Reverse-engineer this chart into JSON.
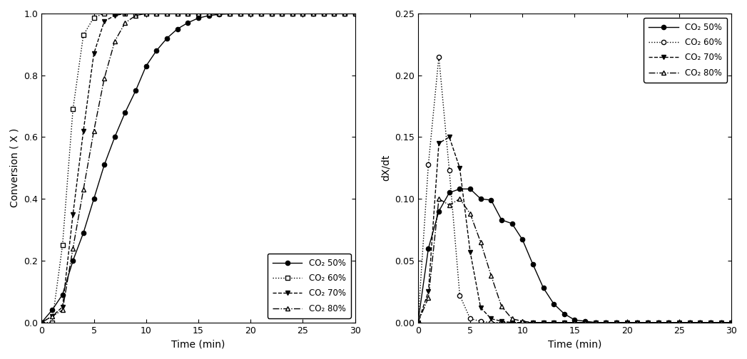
{
  "conv_50": {
    "x": [
      0,
      1,
      2,
      3,
      4,
      5,
      6,
      7,
      8,
      9,
      10,
      11,
      12,
      13,
      14,
      15,
      16,
      17,
      18,
      19,
      20,
      21,
      22,
      23,
      24,
      25,
      26,
      27,
      28,
      29,
      30
    ],
    "y": [
      0.0,
      0.04,
      0.09,
      0.2,
      0.29,
      0.4,
      0.51,
      0.6,
      0.68,
      0.75,
      0.83,
      0.88,
      0.92,
      0.95,
      0.97,
      0.985,
      0.993,
      0.997,
      0.999,
      1.0,
      1.0,
      1.0,
      1.0,
      1.0,
      1.0,
      1.0,
      1.0,
      1.0,
      1.0,
      1.0,
      1.0
    ]
  },
  "conv_60": {
    "x": [
      0,
      1,
      2,
      3,
      4,
      5,
      6,
      7,
      8,
      9,
      10,
      11,
      12,
      13,
      14,
      15,
      16,
      17,
      18,
      19,
      20,
      21,
      22,
      23,
      24,
      25,
      26,
      27,
      28,
      29,
      30
    ],
    "y": [
      0.0,
      0.0,
      0.25,
      0.69,
      0.93,
      0.987,
      1.0,
      1.0,
      1.0,
      1.0,
      1.0,
      1.0,
      1.0,
      1.0,
      1.0,
      1.0,
      1.0,
      1.0,
      1.0,
      1.0,
      1.0,
      1.0,
      1.0,
      1.0,
      1.0,
      1.0,
      1.0,
      1.0,
      1.0,
      1.0,
      1.0
    ]
  },
  "conv_70": {
    "x": [
      0,
      1,
      2,
      3,
      4,
      5,
      6,
      7,
      8,
      9,
      10,
      11,
      12,
      13,
      14,
      15,
      16,
      17,
      18,
      19,
      20,
      21,
      22,
      23,
      24,
      25,
      26,
      27,
      28,
      29,
      30
    ],
    "y": [
      0.0,
      0.02,
      0.05,
      0.35,
      0.62,
      0.87,
      0.975,
      0.993,
      1.0,
      1.0,
      1.0,
      1.0,
      1.0,
      1.0,
      1.0,
      1.0,
      1.0,
      1.0,
      1.0,
      1.0,
      1.0,
      1.0,
      1.0,
      1.0,
      1.0,
      1.0,
      1.0,
      1.0,
      1.0,
      1.0,
      1.0
    ]
  },
  "conv_80": {
    "x": [
      0,
      1,
      2,
      3,
      4,
      5,
      6,
      7,
      8,
      9,
      10,
      11,
      12,
      13,
      14,
      15,
      16,
      17,
      18,
      19,
      20,
      21,
      22,
      23,
      24,
      25,
      26,
      27,
      28,
      29,
      30
    ],
    "y": [
      0.0,
      0.02,
      0.04,
      0.24,
      0.43,
      0.62,
      0.79,
      0.91,
      0.97,
      0.993,
      1.0,
      1.0,
      1.0,
      1.0,
      1.0,
      1.0,
      1.0,
      1.0,
      1.0,
      1.0,
      1.0,
      1.0,
      1.0,
      1.0,
      1.0,
      1.0,
      1.0,
      1.0,
      1.0,
      1.0,
      1.0
    ]
  },
  "rate_50": {
    "x": [
      0,
      1,
      2,
      3,
      4,
      5,
      6,
      7,
      8,
      9,
      10,
      11,
      12,
      13,
      14,
      15,
      16,
      17,
      18,
      19,
      20,
      21,
      22,
      23,
      24,
      25,
      26,
      27,
      28,
      29,
      30
    ],
    "y": [
      0.0,
      0.06,
      0.09,
      0.105,
      0.108,
      0.108,
      0.1,
      0.099,
      0.083,
      0.08,
      0.067,
      0.047,
      0.028,
      0.015,
      0.007,
      0.002,
      0.001,
      0.0,
      0.0,
      0.0,
      0.0,
      0.0,
      0.0,
      0.0,
      0.0,
      0.0,
      0.0,
      0.0,
      0.0,
      0.0,
      0.0
    ]
  },
  "rate_60": {
    "x": [
      0,
      1,
      2,
      3,
      4,
      5,
      6,
      7,
      8,
      9,
      10,
      11,
      12,
      13,
      14,
      15,
      16,
      17,
      18,
      19,
      20,
      21,
      22,
      23,
      24,
      25,
      26,
      27,
      28,
      29,
      30
    ],
    "y": [
      0.0,
      0.128,
      0.215,
      0.123,
      0.022,
      0.003,
      0.001,
      0.0,
      0.0,
      0.0,
      0.0,
      0.0,
      0.0,
      0.0,
      0.0,
      0.0,
      0.0,
      0.0,
      0.0,
      0.0,
      0.0,
      0.0,
      0.0,
      0.0,
      0.0,
      0.0,
      0.0,
      0.0,
      0.0,
      0.0,
      0.0
    ]
  },
  "rate_70": {
    "x": [
      0,
      1,
      2,
      3,
      4,
      5,
      6,
      7,
      8,
      9,
      10,
      11,
      12,
      13,
      14,
      15,
      16,
      17,
      18,
      19,
      20,
      21,
      22,
      23,
      24,
      25,
      26,
      27,
      28,
      29,
      30
    ],
    "y": [
      0.0,
      0.025,
      0.145,
      0.15,
      0.125,
      0.057,
      0.012,
      0.003,
      0.001,
      0.0,
      0.0,
      0.0,
      0.0,
      0.0,
      0.0,
      0.0,
      0.0,
      0.0,
      0.0,
      0.0,
      0.0,
      0.0,
      0.0,
      0.0,
      0.0,
      0.0,
      0.0,
      0.0,
      0.0,
      0.0,
      0.0
    ]
  },
  "rate_80": {
    "x": [
      0,
      1,
      2,
      3,
      4,
      5,
      6,
      7,
      8,
      9,
      10,
      11,
      12,
      13,
      14,
      15,
      16,
      17,
      18,
      19,
      20,
      21,
      22,
      23,
      24,
      25,
      26,
      27,
      28,
      29,
      30
    ],
    "y": [
      0.0,
      0.02,
      0.1,
      0.095,
      0.1,
      0.088,
      0.065,
      0.038,
      0.013,
      0.003,
      0.001,
      0.0,
      0.0,
      0.0,
      0.0,
      0.0,
      0.0,
      0.0,
      0.0,
      0.0,
      0.0,
      0.0,
      0.0,
      0.0,
      0.0,
      0.0,
      0.0,
      0.0,
      0.0,
      0.0,
      0.0
    ]
  },
  "legend_labels": [
    "CO₂ 50%",
    "CO₂ 60%",
    "CO₂ 70%",
    "CO₂ 80%"
  ],
  "xlabel": "Time (min)",
  "ylabel_left": "Conversion ( X )",
  "ylabel_right": "dX/dt",
  "xlim": [
    0,
    30
  ],
  "ylim_conv": [
    0.0,
    1.0
  ],
  "ylim_rate": [
    0.0,
    0.25
  ],
  "xticks": [
    0,
    5,
    10,
    15,
    20,
    25,
    30
  ],
  "yticks_conv": [
    0.0,
    0.2,
    0.4,
    0.6,
    0.8,
    1.0
  ],
  "yticks_rate": [
    0.0,
    0.05,
    0.1,
    0.15,
    0.2,
    0.25
  ]
}
